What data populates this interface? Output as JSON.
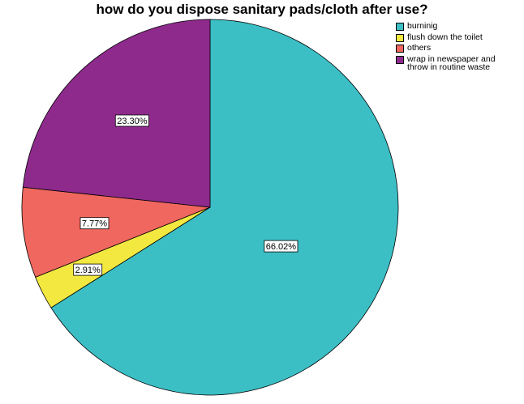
{
  "chart_data": {
    "type": "pie",
    "title": "how do you dispose sanitary pads/cloth after use?",
    "categories": [
      "burninig",
      "flush down the toilet",
      "others",
      "wrap in newspaper and\nthrow in routine waste"
    ],
    "values": [
      66.02,
      2.91,
      7.77,
      23.3
    ],
    "labels": [
      "66.02%",
      "2.91%",
      "7.77%",
      "23.30%"
    ],
    "colors": [
      "#3bbfc5",
      "#f2e840",
      "#f0675f",
      "#8e2a8c"
    ],
    "legend": "top-right",
    "start_angle_deg": 0,
    "direction": "clockwise"
  }
}
